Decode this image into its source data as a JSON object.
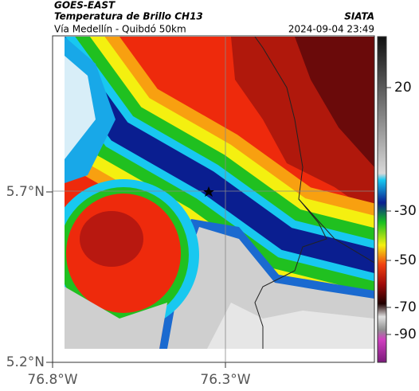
{
  "header": {
    "source": "GOES-EAST",
    "title": "Temperatura de Brillo CH13",
    "agency": "SIATA",
    "subtitle": "Vía Medellín - Quibdó 50km",
    "timestamp": "2024-09-04 23:49"
  },
  "axes": {
    "lat_labels": [
      "5.7°N",
      "5.2°N"
    ],
    "lon_labels": [
      "76.8°W",
      "76.3°W"
    ]
  },
  "colorbar": {
    "labels": [
      "20",
      "-30",
      "-50",
      "-70",
      "-90"
    ]
  }
}
